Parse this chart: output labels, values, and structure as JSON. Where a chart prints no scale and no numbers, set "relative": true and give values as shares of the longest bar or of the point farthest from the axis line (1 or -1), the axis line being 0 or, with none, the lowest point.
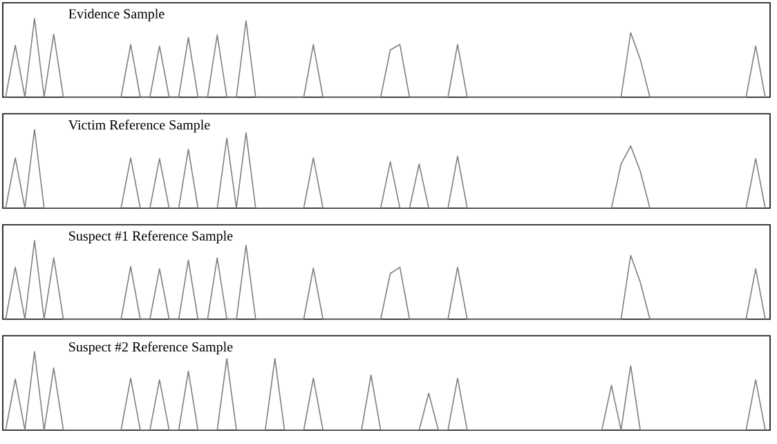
{
  "chart_data": [
    {
      "type": "line",
      "relative": true,
      "title": "Evidence Sample",
      "color": "#7f7f7f",
      "categories": [
        null,
        null,
        null,
        null,
        null,
        null,
        null,
        null,
        null,
        null,
        null,
        null,
        null,
        null,
        null,
        null,
        null,
        null,
        null,
        null,
        null,
        null,
        null,
        null,
        null,
        null,
        null,
        null,
        null,
        null,
        null,
        null,
        null,
        null,
        null,
        null,
        null,
        null,
        null,
        null,
        null,
        null,
        null,
        null,
        null,
        null,
        null,
        null,
        null,
        null,
        null,
        null,
        null,
        null,
        null,
        null,
        null,
        null,
        null,
        null,
        null,
        null,
        null,
        null,
        null,
        null,
        null,
        null,
        null,
        null,
        null,
        null,
        null,
        null,
        null,
        null,
        null,
        null,
        null,
        null
      ],
      "values": [
        0,
        0.66,
        0,
        1.0,
        0,
        0.8,
        0,
        0,
        0,
        0,
        0,
        0,
        0,
        0.67,
        0,
        0,
        0.65,
        0,
        0,
        0.76,
        0,
        0,
        0.79,
        0,
        0,
        0.97,
        0,
        0,
        0,
        0,
        0,
        0,
        0.67,
        0,
        0,
        0,
        0,
        0,
        0,
        0,
        0.6,
        0.67,
        0,
        0,
        0,
        0,
        0,
        0.67,
        0,
        0,
        0,
        0,
        0,
        0,
        0,
        0,
        0,
        0,
        0,
        0,
        0,
        0,
        0,
        0,
        0,
        0.82,
        0.48,
        0,
        0,
        0,
        0,
        0,
        0,
        0,
        0,
        0,
        0,
        0,
        0.65,
        0
      ]
    },
    {
      "type": "line",
      "relative": true,
      "title": "Victim Reference Sample",
      "color": "#7f7f7f",
      "categories": [
        null,
        null,
        null,
        null,
        null,
        null,
        null,
        null,
        null,
        null,
        null,
        null,
        null,
        null,
        null,
        null,
        null,
        null,
        null,
        null,
        null,
        null,
        null,
        null,
        null,
        null,
        null,
        null,
        null,
        null,
        null,
        null,
        null,
        null,
        null,
        null,
        null,
        null,
        null,
        null,
        null,
        null,
        null,
        null,
        null,
        null,
        null,
        null,
        null,
        null,
        null,
        null,
        null,
        null,
        null,
        null,
        null,
        null,
        null,
        null,
        null,
        null,
        null,
        null,
        null,
        null,
        null,
        null,
        null,
        null,
        null,
        null,
        null,
        null,
        null,
        null,
        null,
        null,
        null,
        null
      ],
      "values": [
        0,
        0.64,
        0,
        1.0,
        0,
        0,
        0,
        0,
        0,
        0,
        0,
        0,
        0,
        0.64,
        0,
        0,
        0.63,
        0,
        0,
        0.75,
        0,
        0,
        0,
        0.89,
        0,
        0.96,
        0,
        0,
        0,
        0,
        0,
        0,
        0.64,
        0,
        0,
        0,
        0,
        0,
        0,
        0,
        0.59,
        0,
        0,
        0.56,
        0,
        0,
        0,
        0.66,
        0,
        0,
        0,
        0,
        0,
        0,
        0,
        0,
        0,
        0,
        0,
        0,
        0,
        0,
        0,
        0,
        0.56,
        0.79,
        0.47,
        0,
        0,
        0,
        0,
        0,
        0,
        0,
        0,
        0,
        0,
        0,
        0.63,
        0
      ]
    },
    {
      "type": "line",
      "relative": true,
      "title": "Suspect #1 Reference Sample",
      "color": "#7f7f7f",
      "categories": [
        null,
        null,
        null,
        null,
        null,
        null,
        null,
        null,
        null,
        null,
        null,
        null,
        null,
        null,
        null,
        null,
        null,
        null,
        null,
        null,
        null,
        null,
        null,
        null,
        null,
        null,
        null,
        null,
        null,
        null,
        null,
        null,
        null,
        null,
        null,
        null,
        null,
        null,
        null,
        null,
        null,
        null,
        null,
        null,
        null,
        null,
        null,
        null,
        null,
        null,
        null,
        null,
        null,
        null,
        null,
        null,
        null,
        null,
        null,
        null,
        null,
        null,
        null,
        null,
        null,
        null,
        null,
        null,
        null,
        null,
        null,
        null,
        null,
        null,
        null,
        null,
        null,
        null,
        null,
        null
      ],
      "values": [
        0,
        0.66,
        0,
        1.0,
        0,
        0.78,
        0,
        0,
        0,
        0,
        0,
        0,
        0,
        0.67,
        0,
        0,
        0.64,
        0,
        0,
        0.75,
        0,
        0,
        0.78,
        0,
        0,
        0.94,
        0,
        0,
        0,
        0,
        0,
        0,
        0.65,
        0,
        0,
        0,
        0,
        0,
        0,
        0,
        0.58,
        0.66,
        0,
        0,
        0,
        0,
        0,
        0.66,
        0,
        0,
        0,
        0,
        0,
        0,
        0,
        0,
        0,
        0,
        0,
        0,
        0,
        0,
        0,
        0,
        0,
        0.81,
        0.47,
        0,
        0,
        0,
        0,
        0,
        0,
        0,
        0,
        0,
        0,
        0,
        0.64,
        0
      ]
    },
    {
      "type": "line",
      "relative": true,
      "title": "Suspect #2 Reference Sample",
      "color": "#7f7f7f",
      "categories": [
        null,
        null,
        null,
        null,
        null,
        null,
        null,
        null,
        null,
        null,
        null,
        null,
        null,
        null,
        null,
        null,
        null,
        null,
        null,
        null,
        null,
        null,
        null,
        null,
        null,
        null,
        null,
        null,
        null,
        null,
        null,
        null,
        null,
        null,
        null,
        null,
        null,
        null,
        null,
        null,
        null,
        null,
        null,
        null,
        null,
        null,
        null,
        null,
        null,
        null,
        null,
        null,
        null,
        null,
        null,
        null,
        null,
        null,
        null,
        null,
        null,
        null,
        null,
        null,
        null,
        null,
        null,
        null,
        null,
        null,
        null,
        null,
        null,
        null,
        null,
        null,
        null,
        null,
        null,
        null
      ],
      "values": [
        0,
        0.65,
        0,
        1.0,
        0,
        0.79,
        0,
        0,
        0,
        0,
        0,
        0,
        0,
        0.66,
        0,
        0,
        0.64,
        0,
        0,
        0.75,
        0,
        0,
        0,
        0.91,
        0,
        0,
        0,
        0,
        0.91,
        0,
        0,
        0,
        0.66,
        0,
        0,
        0,
        0,
        0,
        0.7,
        0,
        0,
        0,
        0,
        0,
        0.47,
        0,
        0,
        0.66,
        0,
        0,
        0,
        0,
        0,
        0,
        0,
        0,
        0,
        0,
        0,
        0,
        0,
        0,
        0,
        0.57,
        0,
        0.82,
        0,
        0,
        0,
        0,
        0,
        0,
        0,
        0,
        0,
        0,
        0,
        0,
        0.64,
        0
      ]
    }
  ]
}
